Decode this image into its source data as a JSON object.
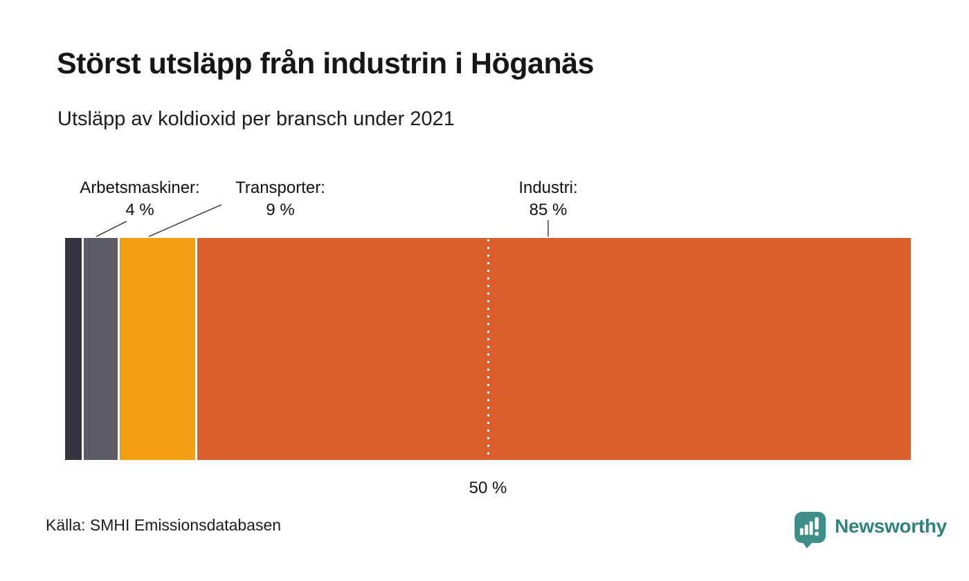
{
  "header": {
    "title": "Störst utsläpp från industrin i Höganäs",
    "subtitle": "Utsläpp av koldioxid per bransch under 2021"
  },
  "chart_data": {
    "type": "bar",
    "variant": "horizontal-stacked-100-percent",
    "title": "Störst utsläpp från industrin i Höganäs",
    "subtitle": "Utsläpp av koldioxid per bransch under 2021",
    "unit": "%",
    "categories": [
      "",
      "Arbetsmaskiner",
      "Transporter",
      "Industri"
    ],
    "values": [
      2,
      4,
      9,
      85
    ],
    "segments": [
      {
        "name": "",
        "value": 2,
        "color": "#33323E",
        "label": "",
        "value_label": ""
      },
      {
        "name": "Arbetsmaskiner",
        "value": 4,
        "color": "#5B5A66",
        "label": "Arbetsmaskiner:",
        "value_label": "4 %"
      },
      {
        "name": "Transporter",
        "value": 9,
        "color": "#F59C14",
        "label": "Transporter:",
        "value_label": "9 %"
      },
      {
        "name": "Industri",
        "value": 85,
        "color": "#DA5F2C",
        "label": "Industri:",
        "value_label": "85 %"
      }
    ],
    "reference_line": {
      "position_percent": 50,
      "label": "50 %"
    },
    "axis": "none",
    "grid": false,
    "legend_position": "annotations-above-bar"
  },
  "footer": {
    "source": "Källa: SMHI Emissionsdatabasen",
    "logo_text": "Newsworthy",
    "logo_color": "#3D8E88",
    "logo_text_color": "#2F827D"
  }
}
